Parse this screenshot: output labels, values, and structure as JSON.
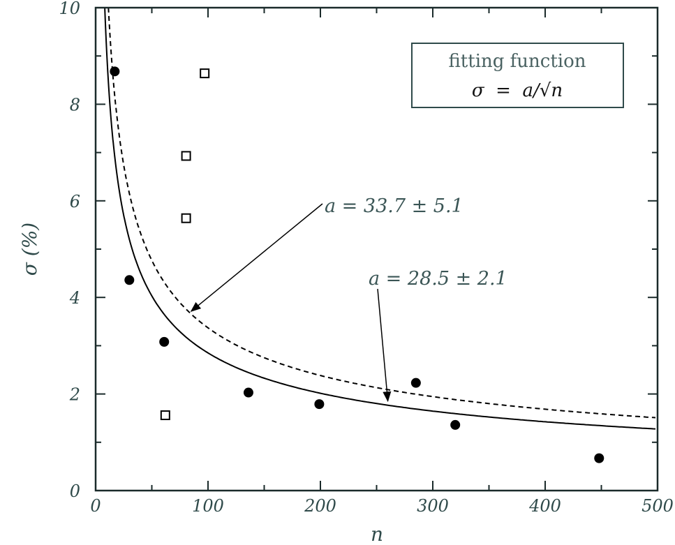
{
  "chart_data": {
    "type": "scatter",
    "xlabel": "n",
    "ylabel": "σ (%)",
    "xlim": [
      0,
      500
    ],
    "ylim": [
      0,
      10
    ],
    "xticks": [
      "0",
      "100",
      "200",
      "300",
      "400",
      "500"
    ],
    "yticks": [
      "0",
      "2",
      "4",
      "6",
      "8",
      "10"
    ],
    "grid": false,
    "legend": {
      "position": "top-right",
      "title": "fitting function",
      "formula": "σ  =  a/√n"
    },
    "series": [
      {
        "marker": "filled-circle",
        "x": [
          17,
          30,
          61,
          136,
          199,
          285,
          320,
          448
        ],
        "y": [
          8.68,
          4.36,
          3.08,
          2.03,
          1.79,
          2.23,
          1.36,
          0.67
        ]
      },
      {
        "marker": "open-square",
        "x": [
          97,
          80.5,
          80.5,
          62
        ],
        "y": [
          8.64,
          6.93,
          5.64,
          1.56
        ]
      }
    ],
    "curves": [
      {
        "style": "solid",
        "a": 28.5,
        "label": "a = 28.5 ± 2.1",
        "arrow_to_n": 260
      },
      {
        "style": "dashed",
        "a": 33.7,
        "label": "a = 33.7 ± 5.1",
        "arrow_to_n": 85
      }
    ],
    "colors": {
      "text": "#2f4a4a",
      "marks": "#000000"
    }
  }
}
